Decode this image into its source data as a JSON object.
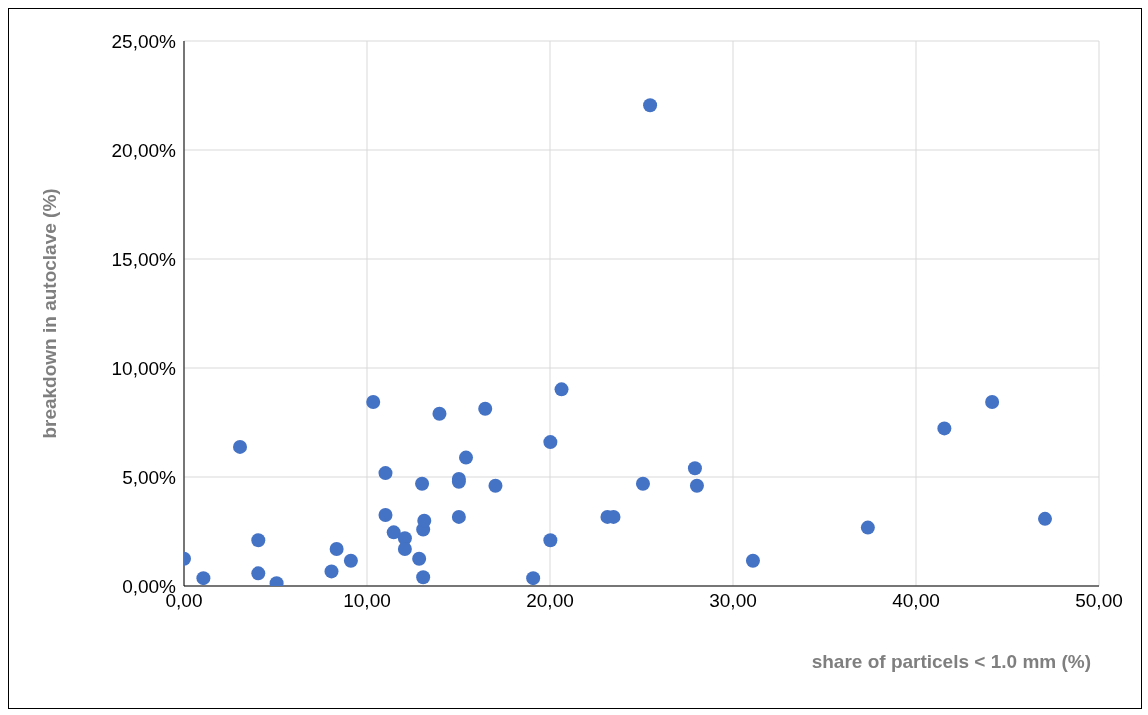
{
  "chart_data": {
    "type": "scatter",
    "xlabel": "share of particels < 1.0 mm (%)",
    "ylabel": "breakdown in autoclave (%)",
    "x": [
      0,
      1.06,
      3.06,
      4.06,
      4.06,
      5.06,
      8.06,
      8.34,
      9.12,
      10.34,
      11.01,
      11.01,
      11.46,
      12.07,
      12.07,
      12.85,
      13.01,
      13.07,
      13.13,
      13.07,
      13.96,
      15.02,
      15.02,
      15.02,
      15.41,
      16.46,
      17.02,
      19.08,
      20.02,
      20.02,
      20.63,
      23.14,
      23.47,
      25.08,
      25.47,
      27.92,
      28.03,
      31.09,
      37.37,
      41.55,
      44.16,
      47.05
    ],
    "series": [
      {
        "color": "#4472c4",
        "values": [
          1.25,
          0.36,
          6.38,
          2.1,
          0.58,
          0.13,
          0.67,
          1.7,
          1.16,
          8.44,
          5.18,
          3.26,
          2.46,
          2.19,
          1.7,
          1.25,
          4.69,
          2.59,
          2.99,
          0.4,
          7.9,
          4.91,
          4.78,
          3.17,
          5.89,
          8.13,
          4.6,
          0.36,
          2.1,
          6.6,
          9.02,
          3.17,
          3.17,
          4.69,
          22.05,
          5.4,
          4.6,
          1.16,
          2.68,
          7.23,
          8.44,
          3.08
        ]
      }
    ],
    "xlim": [
      0,
      50
    ],
    "xticks": [
      {
        "value": 0,
        "label": "0,00"
      },
      {
        "value": 10,
        "label": "10,00"
      },
      {
        "value": 20,
        "label": "20,00"
      },
      {
        "value": 30,
        "label": "30,00"
      },
      {
        "value": 40,
        "label": "40,00"
      },
      {
        "value": 50,
        "label": "50,00"
      }
    ],
    "ylim": [
      0,
      25
    ],
    "yticks": [
      {
        "value": 0,
        "label": "0,00%"
      },
      {
        "value": 5,
        "label": "5,00%"
      },
      {
        "value": 10,
        "label": "10,00%"
      },
      {
        "value": 15,
        "label": "15,00%"
      },
      {
        "value": 20,
        "label": "20,00%"
      },
      {
        "value": 25,
        "label": "25,00%"
      }
    ],
    "grid": true,
    "legend": false,
    "marker": "circle"
  }
}
